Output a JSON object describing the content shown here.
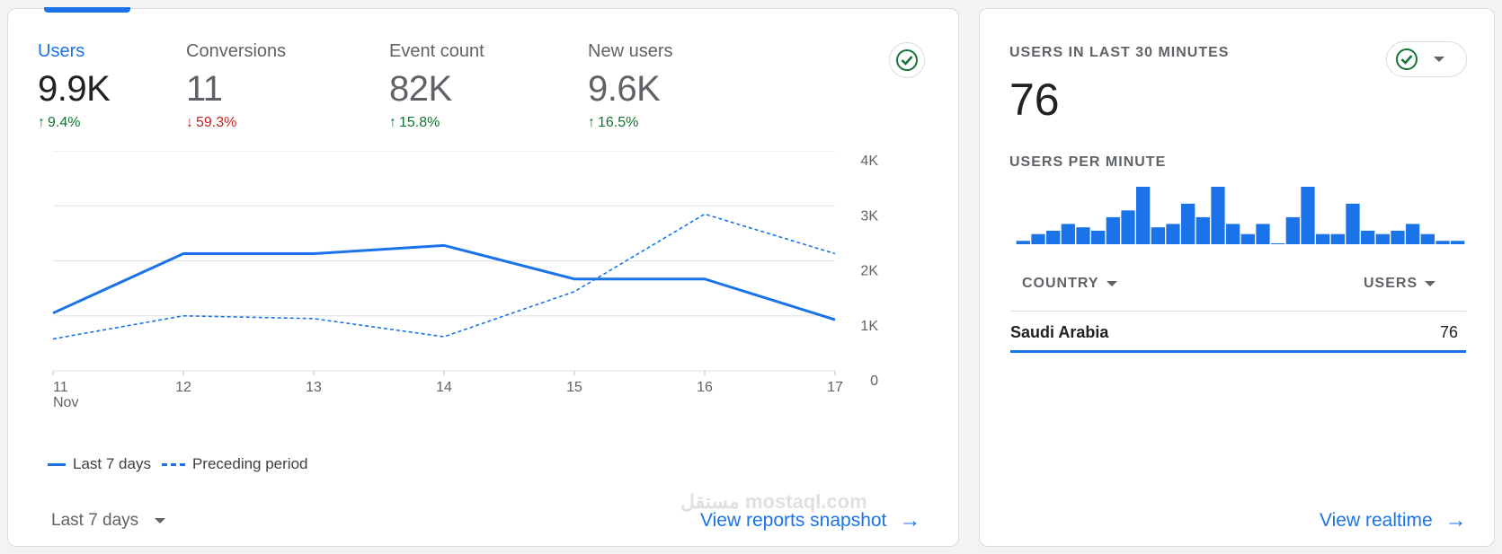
{
  "overview": {
    "metrics": [
      {
        "label": "Users",
        "value": "9.9K",
        "change": "9.4%",
        "direction": "up"
      },
      {
        "label": "Conversions",
        "value": "11",
        "change": "59.3%",
        "direction": "down"
      },
      {
        "label": "Event count",
        "value": "82K",
        "change": "15.8%",
        "direction": "up"
      },
      {
        "label": "New users",
        "value": "9.6K",
        "change": "16.5%",
        "direction": "up"
      }
    ],
    "legend": {
      "current": "Last 7 days",
      "previous": "Preceding period"
    },
    "date_range": "Last 7 days",
    "link": "View reports snapshot"
  },
  "chart_data": {
    "type": "line",
    "x": [
      "11",
      "12",
      "13",
      "14",
      "15",
      "16",
      "17"
    ],
    "x_sub_labels": {
      "11": "Nov"
    },
    "y_ticks": [
      "0",
      "1K",
      "2K",
      "3K",
      "4K"
    ],
    "ylim": [
      0,
      4000
    ],
    "grid": true,
    "legend_position": "bottom-left",
    "series": [
      {
        "name": "Last 7 days",
        "style": "solid",
        "values": [
          1050,
          2130,
          2130,
          2280,
          1670,
          1670,
          930
        ]
      },
      {
        "name": "Preceding period",
        "style": "dashed",
        "values": [
          580,
          1000,
          950,
          620,
          1440,
          2850,
          2130
        ]
      }
    ],
    "colors": {
      "line": "#1a73e8",
      "grid": "#e0e0e0"
    }
  },
  "realtime": {
    "title": "USERS IN LAST 30 MINUTES",
    "value": "76",
    "subtitle": "USERS PER MINUTE",
    "per_minute": [
      1,
      3,
      4,
      6,
      5,
      4,
      8,
      10,
      17,
      5,
      6,
      12,
      8,
      17,
      6,
      3,
      6,
      0,
      8,
      17,
      3,
      3,
      12,
      4,
      3,
      4,
      6,
      3,
      1,
      1
    ],
    "columns": {
      "country": "COUNTRY",
      "users": "USERS"
    },
    "rows": [
      {
        "country": "Saudi Arabia",
        "users": "76"
      }
    ],
    "link": "View realtime"
  },
  "watermark": "مستقل mostaql.com",
  "colors": {
    "accent": "#1a73e8",
    "up": "#137333",
    "down": "#c5221f"
  }
}
